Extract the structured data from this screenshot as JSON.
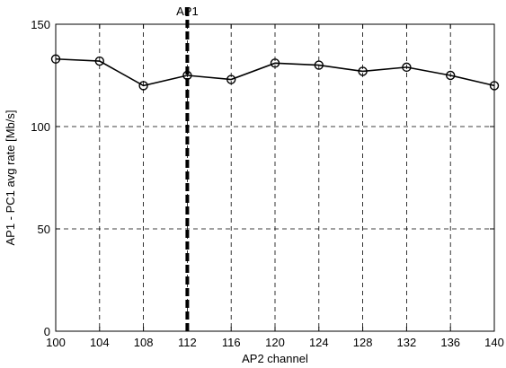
{
  "chart_data": {
    "type": "line",
    "title": "",
    "xlabel": "AP2 channel",
    "ylabel": "AP1 - PC1 avg rate [Mb/s]",
    "xlim": [
      100,
      140
    ],
    "ylim": [
      0,
      150
    ],
    "xticks": [
      100,
      104,
      108,
      112,
      116,
      120,
      124,
      128,
      132,
      136,
      140
    ],
    "yticks": [
      0,
      50,
      100,
      150
    ],
    "grid": true,
    "x": [
      100,
      104,
      108,
      112,
      116,
      120,
      124,
      128,
      132,
      136,
      140
    ],
    "series": [
      {
        "values": [
          133,
          132,
          120,
          125,
          123,
          131,
          130,
          127,
          129,
          125,
          120
        ],
        "color": "#000000",
        "marker": "circle"
      }
    ],
    "annotations": [
      {
        "type": "vertical-line",
        "x": 112,
        "label": "AP1",
        "style": "dashed-thick",
        "color": "#000000"
      }
    ]
  }
}
